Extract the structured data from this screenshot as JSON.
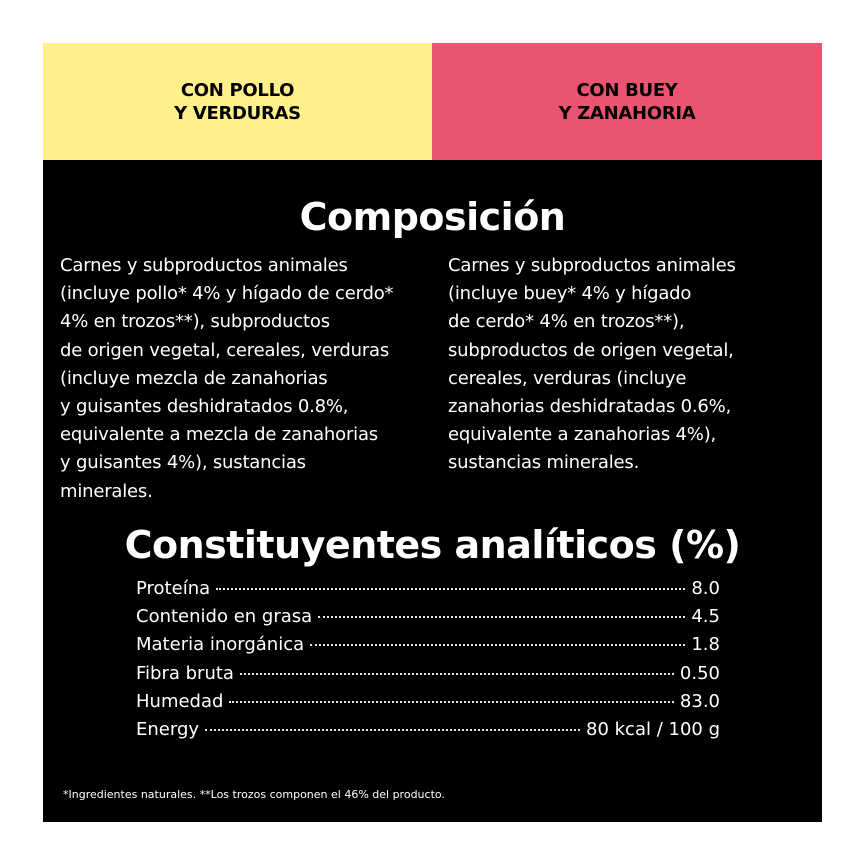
{
  "tabs": {
    "left": [
      "CON POLLO",
      "Y VERDURAS"
    ],
    "right": [
      "CON BUEY",
      "Y ZANAHORIA"
    ],
    "colors": {
      "left": "#fff089",
      "right": "#eb5471",
      "panel": "#000000"
    }
  },
  "composition": {
    "heading": "Composición",
    "left_lines": [
      "Carnes y subproductos animales",
      "(incluye pollo* 4% y hígado de cerdo*",
      "4% en trozos**), subproductos",
      "de origen vegetal, cereales, verduras",
      "(incluye mezcla de zanahorias",
      "y guisantes deshidratados 0.8%,",
      "equivalente a mezcla de zanahorias",
      "y guisantes 4%), sustancias",
      "minerales."
    ],
    "right_lines": [
      "Carnes y subproductos animales",
      "(incluye buey* 4% y hígado",
      "de cerdo* 4% en trozos**),",
      "subproductos de origen vegetal,",
      "cereales, verduras (incluye",
      "zanahorias deshidratadas 0.6%,",
      "equivalente a zanahorias 4%),",
      "sustancias minerales."
    ]
  },
  "analytic": {
    "heading": "Constituyentes analíticos (%)",
    "rows": [
      {
        "name": "Proteína",
        "value": "8.0"
      },
      {
        "name": "Contenido en grasa",
        "value": "4.5"
      },
      {
        "name": "Materia inorgánica",
        "value": "1.8"
      },
      {
        "name": "Fibra bruta",
        "value": "0.50"
      },
      {
        "name": "Humedad",
        "value": "83.0"
      },
      {
        "name": "Energy",
        "value": "80 kcal / 100 g"
      }
    ]
  },
  "footnote": "*Ingredientes naturales. **Los trozos componen el 46% del producto."
}
